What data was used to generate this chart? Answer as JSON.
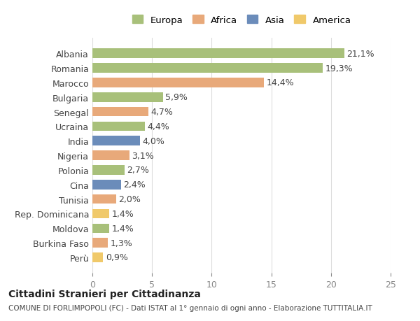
{
  "countries": [
    "Albania",
    "Romania",
    "Marocco",
    "Bulgaria",
    "Senegal",
    "Ucraina",
    "India",
    "Nigeria",
    "Polonia",
    "Cina",
    "Tunisia",
    "Rep. Dominicana",
    "Moldova",
    "Burkina Faso",
    "Perù"
  ],
  "values": [
    21.1,
    19.3,
    14.4,
    5.9,
    4.7,
    4.4,
    4.0,
    3.1,
    2.7,
    2.4,
    2.0,
    1.4,
    1.4,
    1.3,
    0.9
  ],
  "labels": [
    "21,1%",
    "19,3%",
    "14,4%",
    "5,9%",
    "4,7%",
    "4,4%",
    "4,0%",
    "3,1%",
    "2,7%",
    "2,4%",
    "2,0%",
    "1,4%",
    "1,4%",
    "1,3%",
    "0,9%"
  ],
  "continents": [
    "Europa",
    "Europa",
    "Africa",
    "Europa",
    "Africa",
    "Europa",
    "Asia",
    "Africa",
    "Europa",
    "Asia",
    "Africa",
    "America",
    "Europa",
    "Africa",
    "America"
  ],
  "colors": {
    "Europa": "#a8c07a",
    "Africa": "#e8a97a",
    "Asia": "#6b8cba",
    "America": "#f0c96a"
  },
  "legend_order": [
    "Europa",
    "Africa",
    "Asia",
    "America"
  ],
  "title": "Cittadini Stranieri per Cittadinanza",
  "subtitle": "COMUNE DI FORLIMPOPOLI (FC) - Dati ISTAT al 1° gennaio di ogni anno - Elaborazione TUTTITALIA.IT",
  "xlim": [
    0,
    25
  ],
  "xticks": [
    0,
    5,
    10,
    15,
    20,
    25
  ],
  "bg_color": "#ffffff",
  "grid_color": "#dddddd",
  "label_fontsize": 9,
  "tick_fontsize": 9,
  "bar_height": 0.65
}
